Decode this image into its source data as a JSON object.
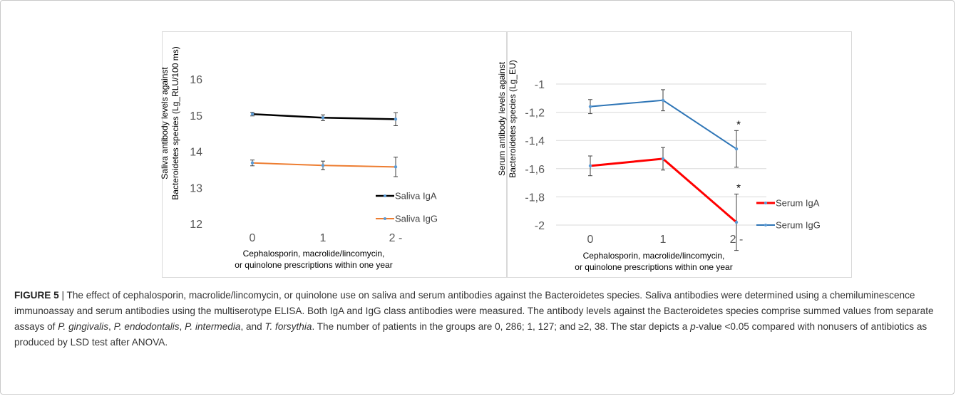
{
  "chart_data": [
    {
      "type": "line",
      "ylabel_lines": [
        "Saliva antibody levels against",
        "Bacteroidetes species (Lg_RLU/100 ms)"
      ],
      "xlabel_lines": [
        "Cephalosporin, macrolide/lincomycin,",
        "or quinolone prescriptions within one year"
      ],
      "categories": [
        "0",
        "1",
        "2 -"
      ],
      "ylim": [
        12,
        16
      ],
      "yticks": [
        12,
        13,
        14,
        15,
        16
      ],
      "ytick_labels": [
        "12",
        "13",
        "14",
        "15",
        "16"
      ],
      "grid": false,
      "legend_position": "bottom-right",
      "series": [
        {
          "name": "Saliva IgA",
          "color": "#000000",
          "values": [
            15.03,
            14.93,
            14.89
          ],
          "errors": [
            0.05,
            0.08,
            0.18
          ],
          "significant": [
            false,
            false,
            false
          ]
        },
        {
          "name": "Saliva IgG",
          "color": "#ed7d31",
          "values": [
            13.68,
            13.61,
            13.57
          ],
          "errors": [
            0.08,
            0.12,
            0.27
          ],
          "significant": [
            false,
            false,
            false
          ]
        }
      ],
      "marker_color": "#5b9bd5"
    },
    {
      "type": "line",
      "ylabel_lines": [
        "Serum antibody levels against",
        "Bacteroidetes species (Lg_EU)"
      ],
      "xlabel_lines": [
        "Cephalosporin, macrolide/lincomycin,",
        "or quinolone prescriptions within one year"
      ],
      "categories": [
        "0",
        "1",
        "2 -"
      ],
      "ylim": [
        -2,
        -1
      ],
      "yticks": [
        -2,
        -1.8,
        -1.6,
        -1.4,
        -1.2,
        -1
      ],
      "ytick_labels": [
        "-2",
        "-1,8",
        "-1,6",
        "-1,4",
        "-1,2",
        "-1"
      ],
      "grid": true,
      "legend_position": "bottom-right",
      "series": [
        {
          "name": "Serum IgA",
          "color": "#ff0000",
          "values": [
            -1.58,
            -1.53,
            -1.98
          ],
          "errors": [
            0.07,
            0.08,
            0.2
          ],
          "significant": [
            false,
            false,
            true
          ]
        },
        {
          "name": "Serum IgG",
          "color": "#2e75b6",
          "values": [
            -1.16,
            -1.115,
            -1.46
          ],
          "errors": [
            0.05,
            0.075,
            0.13
          ],
          "significant": [
            false,
            false,
            true
          ]
        }
      ],
      "marker_color": "#5b9bd5",
      "significance_marker": "*"
    }
  ],
  "caption": {
    "label": "FIGURE 5",
    "separator": " | ",
    "parts": [
      {
        "t": "The effect of cephalosporin, macrolide/lincomycin, or quinolone use on saliva and serum antibodies against the Bacteroidetes species. Saliva antibodies were determined using a chemiluminescence immunoassay and serum antibodies using the multiserotype ELISA. Both IgA and IgG class antibodies were measured. The antibody levels against the Bacteroidetes species comprise summed values from separate assays of ",
        "i": false
      },
      {
        "t": "P. gingivalis",
        "i": true
      },
      {
        "t": ", ",
        "i": false
      },
      {
        "t": "P. endodontalis",
        "i": true
      },
      {
        "t": ", ",
        "i": false
      },
      {
        "t": "P. intermedia",
        "i": true
      },
      {
        "t": ", and ",
        "i": false
      },
      {
        "t": "T. forsythia",
        "i": true
      },
      {
        "t": ". The number of patients in the groups are 0, 286; 1, 127; and ≥2, 38. The star depicts a ",
        "i": false
      },
      {
        "t": "p",
        "i": true
      },
      {
        "t": "-value <0.05 compared with nonusers of antibiotics as produced by LSD test after ANOVA.",
        "i": false
      }
    ]
  }
}
